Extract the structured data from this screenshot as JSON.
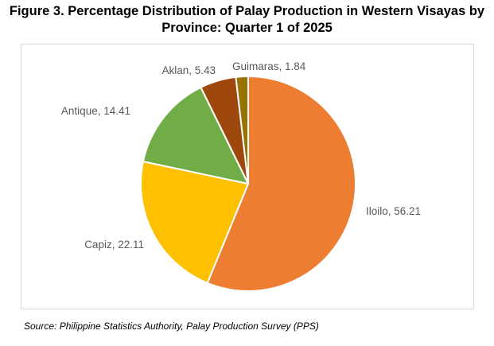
{
  "title_line1": "Figure 3. Percentage Distribution of Palay Production in Western Visayas by",
  "title_line2": "Province: Quarter 1 of 2025",
  "source": "Source: Philippine Statistics Authority, Palay Production Survey (PPS)",
  "chart_data": {
    "type": "pie",
    "title": "Figure 3. Percentage Distribution of Palay Production in Western Visayas by Province: Quarter 1 of 2025",
    "slices": [
      {
        "label": "Iloilo",
        "value": 56.21,
        "display": "Iloilo, 56.21",
        "color": "#ED7D31"
      },
      {
        "label": "Capiz",
        "value": 22.11,
        "display": "Capiz, 22.11",
        "color": "#FFC000"
      },
      {
        "label": "Antique",
        "value": 14.41,
        "display": "Antique, 14.41",
        "color": "#70AD47"
      },
      {
        "label": "Aklan",
        "value": 5.43,
        "display": "Aklan, 5.43",
        "color": "#9E480E"
      },
      {
        "label": "Guimaras",
        "value": 1.84,
        "display": "Guimaras, 1.84",
        "color": "#997300"
      }
    ],
    "start": "12 o'clock",
    "direction": "clockwise",
    "legend": "none",
    "data_labels": "outside end"
  }
}
